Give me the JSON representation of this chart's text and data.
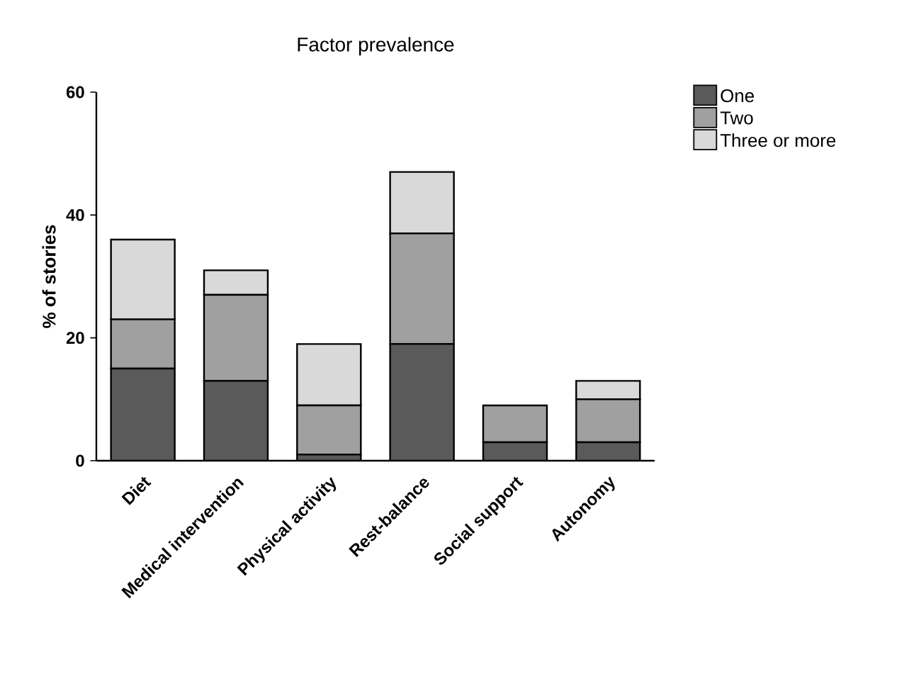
{
  "chart_data": {
    "type": "bar",
    "title": "Factor prevalence",
    "ylabel": "% of stories",
    "categories": [
      "Diet",
      "Medical intervention",
      "Physical activity",
      "Rest-balance",
      "Social support",
      "Autonomy"
    ],
    "stacked": true,
    "ylim": [
      0,
      60
    ],
    "yticks": [
      0,
      20,
      40,
      60
    ],
    "legend": "top right",
    "series": [
      {
        "name": "One",
        "color": "#5a5a5a",
        "values": [
          15,
          13,
          1,
          19,
          3,
          3
        ]
      },
      {
        "name": "Two",
        "color": "#a0a0a0",
        "values": [
          8,
          14,
          8,
          18,
          6,
          7
        ]
      },
      {
        "name": "Three or more",
        "color": "#d9d9d9",
        "values": [
          13,
          4,
          10,
          10,
          0,
          3
        ]
      }
    ]
  }
}
